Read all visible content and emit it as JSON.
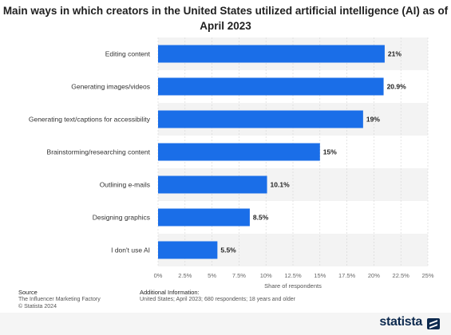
{
  "chart_data": {
    "type": "bar",
    "orientation": "horizontal",
    "title": "Main ways in which creators in the United States utilized artificial intelligence (AI) as of April 2023",
    "categories": [
      "Editing content",
      "Generating images/videos",
      "Generating text/captions for accessibility",
      "Brainstorming/researching content",
      "Outlining e-mails",
      "Designing graphics",
      "I don't use AI"
    ],
    "values": [
      21,
      20.9,
      19,
      15,
      10.1,
      8.5,
      5.5
    ],
    "value_labels": [
      "21%",
      "20.9%",
      "19%",
      "15%",
      "10.1%",
      "8.5%",
      "5.5%"
    ],
    "xlabel": "Share of respondents",
    "ylabel": "",
    "xlim": [
      0,
      25
    ],
    "xticks": [
      "0%",
      "2.5%",
      "5%",
      "7.5%",
      "10%",
      "12.5%",
      "15%",
      "17.5%",
      "20%",
      "22.5%",
      "25%"
    ],
    "bar_color": "#1a6ee8",
    "grid": true
  },
  "footer": {
    "source_heading": "Source",
    "source_lines": [
      "The Influencer Marketing Factory",
      "© Statista 2024"
    ],
    "info_heading": "Additional Information:",
    "info_text": "United States; April 2023; 680 respondents; 18 years and older"
  },
  "brand": {
    "name": "statista",
    "icon": "statista-logo-icon"
  }
}
